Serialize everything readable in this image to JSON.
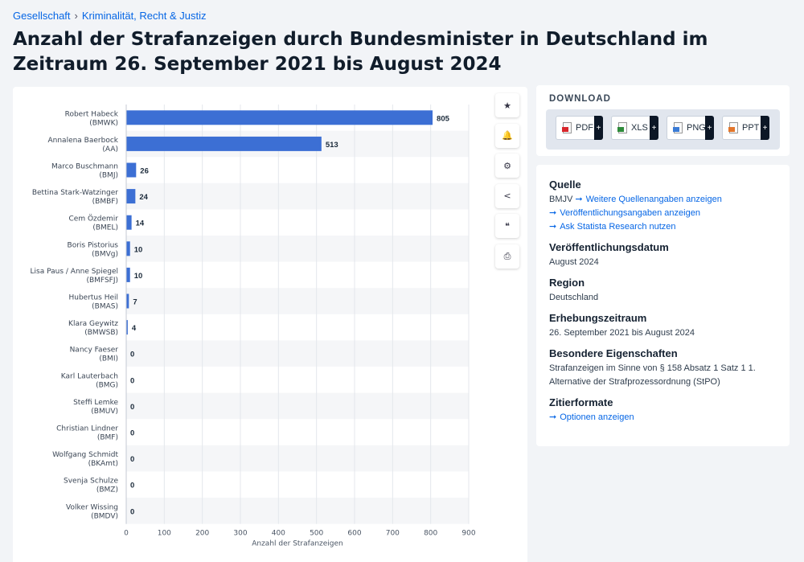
{
  "breadcrumb": {
    "item1": "Gesellschaft",
    "sep": "›",
    "item2": "Kriminalität, Recht & Justiz"
  },
  "page_title": "Anzahl der Strafanzeigen durch Bundesminister in Deutschland im Zeitraum 26. September 2021 bis August 2024",
  "toolbar": [
    {
      "icon": "star-icon",
      "glyph": "★"
    },
    {
      "icon": "bell-icon",
      "glyph": "🔔"
    },
    {
      "icon": "gear-icon",
      "glyph": "⚙"
    },
    {
      "icon": "share-icon",
      "glyph": "<"
    },
    {
      "icon": "quote-icon",
      "glyph": "❝"
    },
    {
      "icon": "print-icon",
      "glyph": "⎙"
    }
  ],
  "download": {
    "title": "DOWNLOAD",
    "buttons": [
      {
        "label": "PDF",
        "plus": "+",
        "color": "#d8262b"
      },
      {
        "label": "XLS",
        "plus": "+",
        "color": "#2e8b3a"
      },
      {
        "label": "PNG",
        "plus": "+",
        "color": "#3a7bd5"
      },
      {
        "label": "PPT",
        "plus": "+",
        "color": "#e3762b"
      }
    ]
  },
  "info": {
    "quelle_title": "Quelle",
    "quelle_source": "BMJV",
    "quelle_links": [
      "Weitere Quellenangaben anzeigen",
      "Veröffentlichungsangaben anzeigen",
      "Ask Statista Research nutzen"
    ],
    "pub_title": "Veröffentlichungsdatum",
    "pub_value": "August 2024",
    "region_title": "Region",
    "region_value": "Deutschland",
    "period_title": "Erhebungszeitraum",
    "period_value": "26. September 2021 bis August 2024",
    "special_title": "Besondere Eigenschaften",
    "special_value": "Strafanzeigen im Sinne von § 158 Absatz 1 Satz 1 1. Alternative der Strafprozessordnung (StPO)",
    "cite_title": "Zitierformate",
    "cite_link": "Optionen anzeigen"
  },
  "colors": {
    "bar": "#3c6fd4",
    "accent": "#0666e5"
  },
  "chart_data": {
    "type": "bar",
    "orientation": "horizontal",
    "categories": [
      {
        "name": "Robert Habeck",
        "dept": "(BMWK)"
      },
      {
        "name": "Annalena Baerbock",
        "dept": "(AA)"
      },
      {
        "name": "Marco Buschmann",
        "dept": "(BMJ)"
      },
      {
        "name": "Bettina Stark-Watzinger",
        "dept": "(BMBF)"
      },
      {
        "name": "Cem Özdemir",
        "dept": "(BMEL)"
      },
      {
        "name": "Boris Pistorius",
        "dept": "(BMVg)"
      },
      {
        "name": "Lisa Paus / Anne Spiegel",
        "dept": "(BMFSFJ)"
      },
      {
        "name": "Hubertus Heil",
        "dept": "(BMAS)"
      },
      {
        "name": "Klara Geywitz",
        "dept": "(BMWSB)"
      },
      {
        "name": "Nancy Faeser",
        "dept": "(BMI)"
      },
      {
        "name": "Karl Lauterbach",
        "dept": "(BMG)"
      },
      {
        "name": "Steffi Lemke",
        "dept": "(BMUV)"
      },
      {
        "name": "Christian Lindner",
        "dept": "(BMF)"
      },
      {
        "name": "Wolfgang Schmidt",
        "dept": "(BKAmt)"
      },
      {
        "name": "Svenja Schulze",
        "dept": "(BMZ)"
      },
      {
        "name": "Volker Wissing",
        "dept": "(BMDV)"
      }
    ],
    "values": [
      805,
      513,
      26,
      24,
      14,
      10,
      10,
      7,
      4,
      0,
      0,
      0,
      0,
      0,
      0,
      0
    ],
    "xlabel": "Anzahl der Strafanzeigen",
    "xlim": [
      0,
      900
    ],
    "xticks": [
      0,
      100,
      200,
      300,
      400,
      500,
      600,
      700,
      800,
      900
    ],
    "grid": true
  }
}
